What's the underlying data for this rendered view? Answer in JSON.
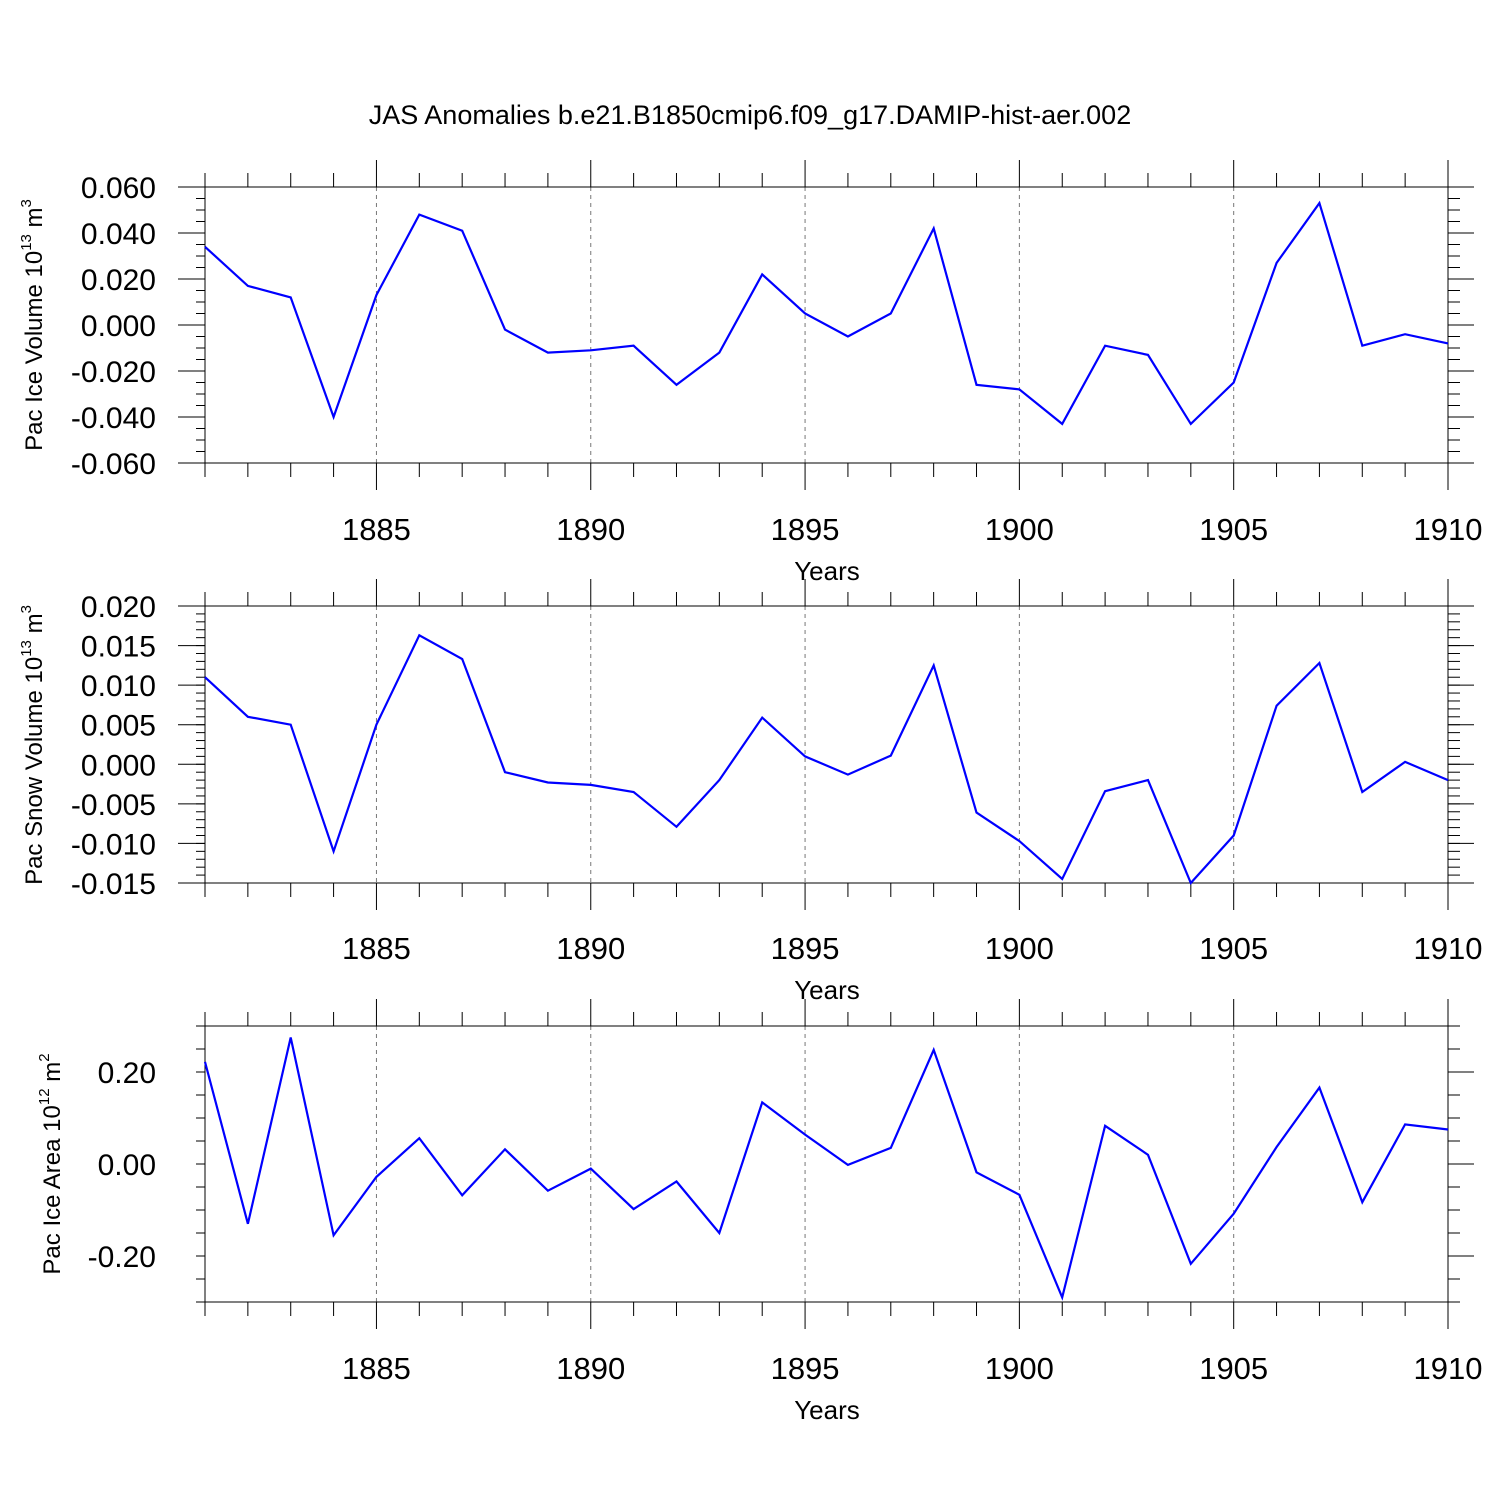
{
  "title": "JAS Anomalies b.e21.B1850cmip6.f09_g17.DAMIP-hist-aer.002",
  "series_color": "#0000ff",
  "chart_data": [
    {
      "type": "line",
      "ylabel_main": "Pac Ice Volume 10",
      "ylabel_exp": "13",
      "ylabel_unit": " m",
      "ylabel_unit_exp": "3",
      "xlabel": "Years",
      "xlim": [
        1881,
        1910
      ],
      "ylim": [
        -0.06,
        0.06
      ],
      "yticks": [
        -0.06,
        -0.04,
        -0.02,
        0.0,
        0.02,
        0.04,
        0.06
      ],
      "yticklabels": [
        "-0.060",
        "-0.040",
        "-0.020",
        "0.000",
        "0.020",
        "0.040",
        "0.060"
      ],
      "yminor_step": 0.005,
      "xticks": [
        1885,
        1890,
        1895,
        1900,
        1905,
        1910
      ],
      "xticklabels": [
        "1885",
        "1890",
        "1895",
        "1900",
        "1905",
        "1910"
      ],
      "x": [
        1881,
        1882,
        1883,
        1884,
        1885,
        1886,
        1887,
        1888,
        1889,
        1890,
        1891,
        1892,
        1893,
        1894,
        1895,
        1896,
        1897,
        1898,
        1899,
        1900,
        1901,
        1902,
        1903,
        1904,
        1905,
        1906,
        1907,
        1908,
        1909,
        1910
      ],
      "y": [
        0.034,
        0.017,
        0.012,
        -0.04,
        0.013,
        0.048,
        0.041,
        -0.002,
        -0.012,
        -0.011,
        -0.009,
        -0.026,
        -0.012,
        0.022,
        0.005,
        -0.005,
        0.005,
        0.042,
        -0.026,
        -0.028,
        -0.043,
        -0.009,
        -0.013,
        -0.043,
        -0.025,
        0.027,
        0.053,
        -0.009,
        -0.004,
        -0.008
      ]
    },
    {
      "type": "line",
      "ylabel_main": "Pac Snow Volume 10",
      "ylabel_exp": "13",
      "ylabel_unit": " m",
      "ylabel_unit_exp": "3",
      "xlabel": "Years",
      "xlim": [
        1881,
        1910
      ],
      "ylim": [
        -0.015,
        0.02
      ],
      "yticks": [
        -0.015,
        -0.01,
        -0.005,
        0.0,
        0.005,
        0.01,
        0.015,
        0.02
      ],
      "yticklabels": [
        "-0.015",
        "-0.010",
        "-0.005",
        "0.000",
        "0.005",
        "0.010",
        "0.015",
        "0.020"
      ],
      "yminor_step": 0.001,
      "xticks": [
        1885,
        1890,
        1895,
        1900,
        1905,
        1910
      ],
      "xticklabels": [
        "1885",
        "1890",
        "1895",
        "1900",
        "1905",
        "1910"
      ],
      "x": [
        1881,
        1882,
        1883,
        1884,
        1885,
        1886,
        1887,
        1888,
        1889,
        1890,
        1891,
        1892,
        1893,
        1894,
        1895,
        1896,
        1897,
        1898,
        1899,
        1900,
        1901,
        1902,
        1903,
        1904,
        1905,
        1906,
        1907,
        1908,
        1909,
        1910
      ],
      "y": [
        0.011,
        0.006,
        0.005,
        -0.011,
        0.005,
        0.0163,
        0.0133,
        -0.001,
        -0.0023,
        -0.0026,
        -0.0035,
        -0.0079,
        -0.002,
        0.0059,
        0.001,
        -0.0013,
        0.0011,
        0.0125,
        -0.0061,
        -0.0097,
        -0.0145,
        -0.0034,
        -0.002,
        -0.015,
        -0.009,
        0.0074,
        0.0128,
        -0.0035,
        0.0003,
        -0.002
      ]
    },
    {
      "type": "line",
      "ylabel_main": "Pac Ice Area 10",
      "ylabel_exp": "12",
      "ylabel_unit": " m",
      "ylabel_unit_exp": "2",
      "xlabel": "Years",
      "xlim": [
        1881,
        1910
      ],
      "ylim": [
        -0.3,
        0.3
      ],
      "yticks": [
        -0.2,
        0.0,
        0.2
      ],
      "yticklabels": [
        "-0.20",
        "0.00",
        "0.20"
      ],
      "yminor_step": 0.05,
      "xticks": [
        1885,
        1890,
        1895,
        1900,
        1905,
        1910
      ],
      "xticklabels": [
        "1885",
        "1890",
        "1895",
        "1900",
        "1905",
        "1910"
      ],
      "x": [
        1881,
        1882,
        1883,
        1884,
        1885,
        1886,
        1887,
        1888,
        1889,
        1890,
        1891,
        1892,
        1893,
        1894,
        1895,
        1896,
        1897,
        1898,
        1899,
        1900,
        1901,
        1902,
        1903,
        1904,
        1905,
        1906,
        1907,
        1908,
        1909,
        1910
      ],
      "y": [
        0.222,
        -0.13,
        0.275,
        -0.155,
        -0.028,
        0.056,
        -0.068,
        0.032,
        -0.058,
        -0.01,
        -0.098,
        -0.038,
        -0.15,
        0.134,
        0.064,
        -0.002,
        0.035,
        0.248,
        -0.018,
        -0.067,
        -0.29,
        0.083,
        0.02,
        -0.217,
        -0.108,
        0.037,
        0.166,
        -0.083,
        0.086,
        0.075
      ]
    }
  ]
}
